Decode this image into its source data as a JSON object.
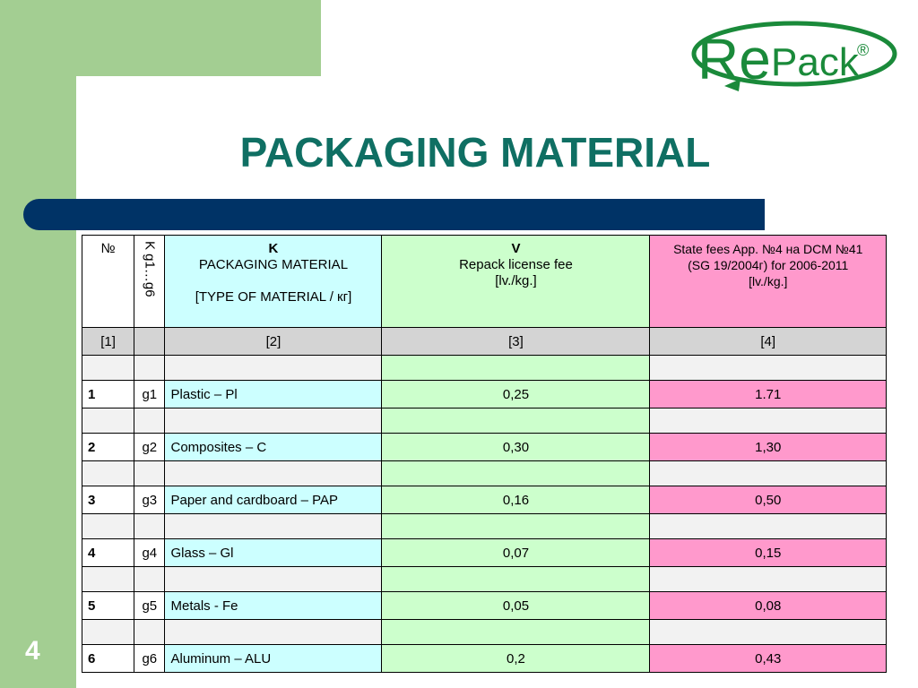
{
  "logo": {
    "text_re": "Re",
    "text_pack": "Pack",
    "registered": "®"
  },
  "title": "PACKAGING MATERIAL",
  "page_number": "4",
  "table": {
    "header": {
      "col1": "№",
      "col2": "K g1…g6",
      "col3_line1": "K",
      "col3_line2": "PACKAGING MATERIAL",
      "col3_line3": "[TYPE OF MATERIAL / кг]",
      "col4_line1": "V",
      "col4_line2": "Repack license fee",
      "col4_line3": "[lv./kg.]",
      "col5_line1": "State fees  App. №4 на DCM №41",
      "col5_line2": "(SG  19/2004г) for 2006-2011",
      "col5_line3": "[lv./kg.]"
    },
    "index_row": [
      "[1]",
      "",
      "[2]",
      "[3]",
      "[4]"
    ],
    "rows": [
      {
        "no": "1",
        "g": "g1",
        "material": "Plastic – Pl",
        "repack": "0,25",
        "state": "1.71"
      },
      {
        "no": "2",
        "g": "g2",
        "material": "Composites – C",
        "repack": "0,30",
        "state": "1,30"
      },
      {
        "no": "3",
        "g": "g3",
        "material": "Paper and cardboard – PAP",
        "repack": "0,16",
        "state": "0,50"
      },
      {
        "no": "4",
        "g": "g4",
        "material": "Glass – Gl",
        "repack": "0,07",
        "state": "0,15"
      },
      {
        "no": "5",
        "g": "g5",
        "material": "Metals - Fe",
        "repack": "0,05",
        "state": "0,08"
      },
      {
        "no": "6",
        "g": "g6",
        "material": "Aluminum  – ALU",
        "repack": "0,2",
        "state": "0,43"
      }
    ]
  },
  "colors": {
    "title": "#0f6f63",
    "bar": "#003366",
    "green_bg": "#a3ce92",
    "cyan": "#ccffff",
    "light_green": "#ccffcc",
    "pink": "#ff99cc",
    "logo_green": "#1a8a3a"
  }
}
